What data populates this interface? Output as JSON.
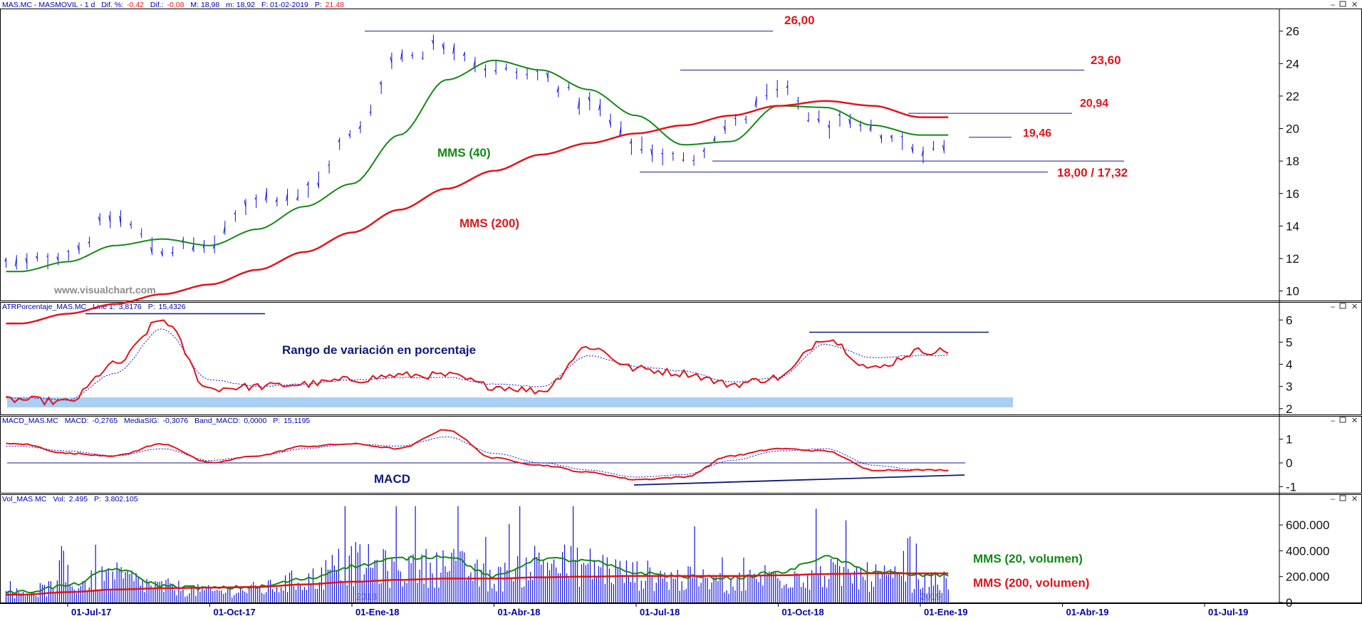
{
  "colors": {
    "price": "#1010dd",
    "ma40": "#138a13",
    "ma200": "#e0151c",
    "red_label": "#e0151c",
    "green_label": "#138a13",
    "navy_label": "#0d1a7a",
    "header_text": "#0000aa",
    "header_red": "#e0151c",
    "band": "#a9cff5",
    "watermark": "#8c8c8c"
  },
  "panels": {
    "price": {
      "header": {
        "name": "MAS.MC - MASMOVIL - 1 d",
        "dif_pct_label": "Dif. %:",
        "dif_pct_value": "-0,42",
        "dif_label": "Dif.:",
        "dif_value": "-0,08",
        "M": "M: 18,98",
        "m": "m: 18,92",
        "F": "F: 01-02-2019",
        "P_label": "P:",
        "P_value": "21,48"
      },
      "ma40_label": "MMS (40)",
      "ma200_label": "MMS (200)",
      "watermark": "www.visualchart.com",
      "level_labels": [
        "26,00",
        "23,60",
        "20,94",
        "19,46",
        "18,00 / 17,32"
      ]
    },
    "atr": {
      "header": {
        "name": "ATRPorcentaje_MAS.MC",
        "line_label": "Line 1:",
        "line_value": "3,8176",
        "p_label": "P:",
        "p_value": "15,4326"
      },
      "annotation": "Rango de variación en porcentaje"
    },
    "macd": {
      "header": {
        "name": "MACD_MAS.MC",
        "macd_label": "MACD:",
        "macd_value": "-0,2765",
        "sig_label": "MediaSIG:",
        "sig_value": "-0,3076",
        "band_label": "Band_MACD:",
        "band_value": "0,0000",
        "p_label": "P:",
        "p_value": "15,1195"
      },
      "annotation": "MACD"
    },
    "vol": {
      "header": {
        "name": "Vol_MAS.MC",
        "vol_label": "Vol:",
        "vol_value": "2.495",
        "p_label": "P:",
        "p_value": "3.802.105"
      },
      "ma20_label": "MMS (20, volumen)",
      "ma200_label": "MMS (200, volumen)",
      "bg_label_1": "2018",
      "bg_label_2": "2019"
    }
  },
  "x_axis_labels": [
    "01-Jul-17",
    "01-Oct-17",
    "01-Ene-18",
    "01-Abr-18",
    "01-Jul-18",
    "01-Oct-18",
    "01-Ene-19",
    "01-Abr-19",
    "01-Jul-19"
  ],
  "chart_data": [
    {
      "type": "line",
      "x": [
        "2017-06",
        "2017-07",
        "2017-08",
        "2017-09",
        "2017-10",
        "2017-11",
        "2017-12",
        "2018-01",
        "2018-02",
        "2018-03",
        "2018-04",
        "2018-05",
        "2018-06",
        "2018-07",
        "2018-08",
        "2018-09",
        "2018-10",
        "2018-11",
        "2018-12",
        "2019-01"
      ],
      "series": [
        {
          "values": [
            11.6,
            12.4,
            14.5,
            12.6,
            12.8,
            15.8,
            16.0,
            19.5,
            24.5,
            25.2,
            23.6,
            23.2,
            21.5,
            19.0,
            18.0,
            20.2,
            22.3,
            20.3,
            19.8,
            18.8
          ]
        },
        {
          "name": "MMS (40)",
          "values": [
            11.2,
            11.8,
            12.8,
            13.2,
            12.8,
            13.8,
            15.2,
            16.6,
            19.6,
            23.0,
            24.2,
            23.6,
            22.4,
            20.8,
            19.0,
            19.2,
            21.4,
            21.3,
            20.2,
            19.6
          ]
        },
        {
          "name": "MMS (200)",
          "values": [
            8.0,
            8.6,
            9.2,
            9.8,
            10.4,
            11.3,
            12.4,
            13.6,
            15.0,
            16.3,
            17.4,
            18.4,
            19.1,
            19.7,
            20.2,
            20.8,
            21.4,
            21.7,
            21.4,
            20.7
          ]
        }
      ],
      "levels": [
        26.0,
        23.6,
        20.94,
        19.46,
        18.0,
        17.32
      ],
      "ylim": [
        9.5,
        26.6
      ],
      "y_ticks": [
        10,
        12,
        14,
        16,
        18,
        20,
        22,
        24,
        26
      ],
      "grid": false
    },
    {
      "type": "line",
      "x": [
        "2017-06",
        "2017-07",
        "2017-08",
        "2017-09",
        "2017-10",
        "2017-11",
        "2017-12",
        "2018-01",
        "2018-02",
        "2018-03",
        "2018-04",
        "2018-05",
        "2018-06",
        "2018-07",
        "2018-08",
        "2018-09",
        "2018-10",
        "2018-11",
        "2018-12",
        "2019-01"
      ],
      "series": [
        {
          "values": [
            2.4,
            2.3,
            4.0,
            6.0,
            2.9,
            3.0,
            3.1,
            3.3,
            3.5,
            3.5,
            3.0,
            2.8,
            4.8,
            3.8,
            3.6,
            3.1,
            3.4,
            5.2,
            3.8,
            4.6
          ]
        },
        {
          "values": [
            2.5,
            2.4,
            3.6,
            5.6,
            3.3,
            3.0,
            3.1,
            3.3,
            3.4,
            3.4,
            3.1,
            3.0,
            4.4,
            3.9,
            3.7,
            3.2,
            3.4,
            4.9,
            4.3,
            4.4
          ]
        }
      ],
      "ylim": [
        1.8,
        6.3
      ],
      "y_ticks": [
        2,
        3,
        4,
        5,
        6
      ]
    },
    {
      "type": "line",
      "x": [
        "2017-06",
        "2017-07",
        "2017-08",
        "2017-09",
        "2017-10",
        "2017-11",
        "2017-12",
        "2018-01",
        "2018-02",
        "2018-03",
        "2018-04",
        "2018-05",
        "2018-06",
        "2018-07",
        "2018-08",
        "2018-09",
        "2018-10",
        "2018-11",
        "2018-12",
        "2019-01"
      ],
      "series": [
        {
          "values": [
            0.8,
            0.4,
            0.3,
            0.8,
            0.0,
            0.3,
            0.7,
            0.8,
            0.6,
            1.4,
            0.2,
            -0.1,
            -0.4,
            -0.7,
            -0.6,
            0.3,
            0.6,
            0.5,
            -0.3,
            -0.3
          ]
        },
        {
          "values": [
            0.7,
            0.5,
            0.3,
            0.6,
            0.1,
            0.3,
            0.6,
            0.8,
            0.7,
            1.1,
            0.4,
            0.0,
            -0.3,
            -0.6,
            -0.5,
            0.1,
            0.5,
            0.6,
            -0.1,
            -0.3
          ]
        }
      ],
      "ylim": [
        -1.2,
        1.5
      ],
      "y_ticks": [
        -1,
        0,
        1
      ]
    },
    {
      "type": "bar",
      "x": [
        "2017-06",
        "2017-07",
        "2017-08",
        "2017-09",
        "2017-10",
        "2017-11",
        "2017-12",
        "2018-01",
        "2018-02",
        "2018-03",
        "2018-04",
        "2018-05",
        "2018-06",
        "2018-07",
        "2018-08",
        "2018-09",
        "2018-10",
        "2018-11",
        "2018-12",
        "2019-01"
      ],
      "series": [
        {
          "values": [
            90000,
            150000,
            230000,
            140000,
            100000,
            120000,
            200000,
            350000,
            300000,
            330000,
            220000,
            360000,
            330000,
            250000,
            210000,
            180000,
            250000,
            260000,
            230000,
            180000
          ]
        },
        {
          "name": "MMS (20, volumen)",
          "values": [
            80000,
            130000,
            260000,
            130000,
            110000,
            120000,
            180000,
            280000,
            340000,
            360000,
            200000,
            340000,
            320000,
            230000,
            200000,
            190000,
            230000,
            350000,
            240000,
            210000
          ]
        },
        {
          "name": "MMS (200, volumen)",
          "values": [
            60000,
            80000,
            100000,
            110000,
            115000,
            120000,
            140000,
            160000,
            175000,
            185000,
            185000,
            195000,
            200000,
            205000,
            205000,
            205000,
            210000,
            220000,
            225000,
            225000
          ]
        }
      ],
      "ylim": [
        0,
        760000
      ],
      "y_ticks": [
        "0",
        "200.000",
        "400.000",
        "600.000"
      ]
    }
  ]
}
